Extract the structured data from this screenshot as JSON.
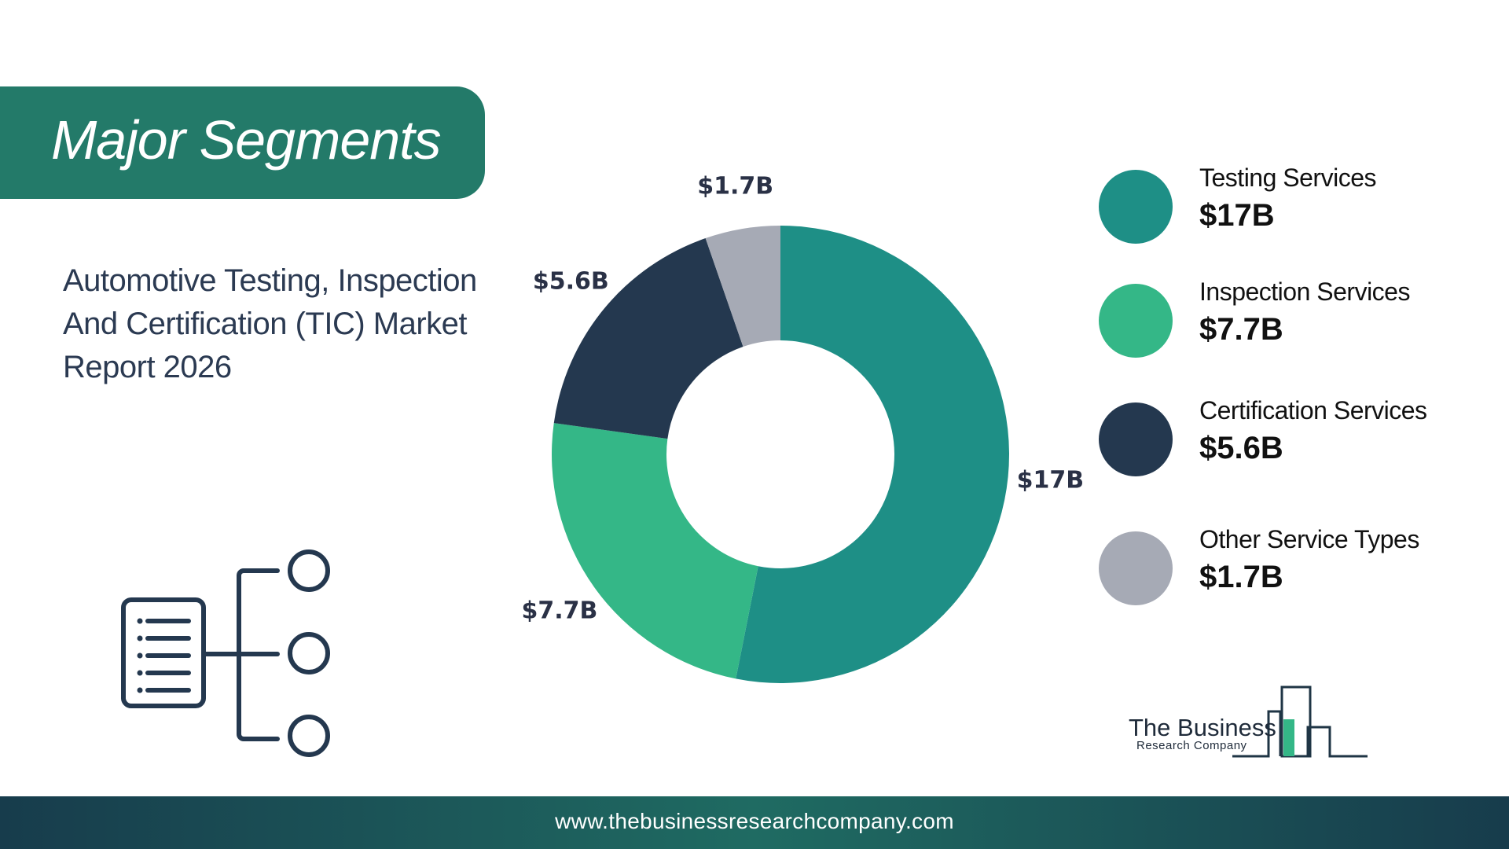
{
  "header": {
    "title": "Major Segments"
  },
  "report": {
    "title": "Automotive Testing, Inspection And Certification (TIC) Market Report 2026"
  },
  "chart_data": {
    "type": "pie",
    "categories": [
      "Testing Services",
      "Inspection Services",
      "Certification Services",
      "Other Service Types"
    ],
    "values": [
      17,
      7.7,
      5.6,
      1.7
    ],
    "unit": "$B",
    "labels": [
      "$17B",
      "$7.7B",
      "$5.6B",
      "$1.7B"
    ],
    "colors": [
      "#1e8f86",
      "#34b787",
      "#24384f",
      "#a6aab5"
    ],
    "style": "donut",
    "legend_placement": "right"
  },
  "legend": {
    "items": [
      {
        "label": "Testing Services",
        "value": "$17B",
        "color": "#1e8f86"
      },
      {
        "label": "Inspection Services",
        "value": "$7.7B",
        "color": "#34b787"
      },
      {
        "label": "Certification Services",
        "value": "$5.6B",
        "color": "#24384f"
      },
      {
        "label": "Other Service Types",
        "value": "$1.7B",
        "color": "#a6aab5"
      }
    ]
  },
  "logo": {
    "line1": "The Business",
    "line2": "Research Company"
  },
  "footer": {
    "url": "www.thebusinessresearchcompany.com"
  },
  "icons": {
    "segments": "document-hierarchy-icon",
    "logo": "building-bars-icon"
  }
}
